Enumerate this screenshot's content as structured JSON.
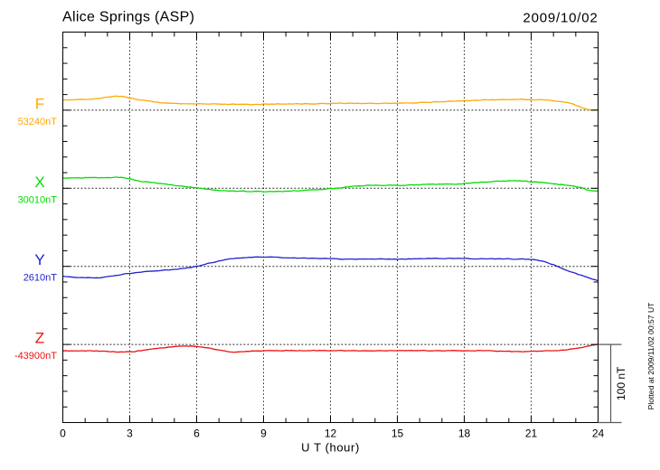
{
  "window": {
    "background": "#ffffff"
  },
  "header": {
    "title": "Alice Springs (ASP)",
    "date": "2009/10/02"
  },
  "footer_note": "Plotted at 2009/11/02 00:57 UT",
  "chart_data": {
    "type": "line",
    "title": "Alice Springs (ASP)",
    "date": "2009/10/02",
    "xlabel": "U T (hour)",
    "xlim": [
      0,
      24
    ],
    "xtick_minor_step_hours": 1,
    "xtick_major_step_hours": 3,
    "xtick_labels": [
      "0",
      "3",
      "6",
      "9",
      "12",
      "15",
      "18",
      "21",
      "24"
    ],
    "ylim_rel_nT": [
      -100,
      400
    ],
    "ytick_minor_step_nT": 20,
    "ytick_major_step_nT": 100,
    "grid": {
      "vertical_dotted_every_hours": 3,
      "dotted_baseline_per_trace": true
    },
    "legend_position": "left-of-plot",
    "x_step_hours": 0.125,
    "scale_bar": {
      "label": "100 nT",
      "nT": 100
    },
    "series": [
      {
        "name": "F",
        "baseline_label": "53240nT",
        "baseline_nT": 53240,
        "offset_rel_nT": 300,
        "color": "#ffa800",
        "delta_nT": [
          13.2,
          13.3,
          12.9,
          13.2,
          13.2,
          13.7,
          13.7,
          14.0,
          13.5,
          13.9,
          13.9,
          14.3,
          14.9,
          14.9,
          15.5,
          16.4,
          16.7,
          17.0,
          17.7,
          18.1,
          17.5,
          17.8,
          17.3,
          16.4,
          15.2,
          15.2,
          14.1,
          13.4,
          12.9,
          12.9,
          12.1,
          11.7,
          11.1,
          10.4,
          10.3,
          9.4,
          9.2,
          9.2,
          8.9,
          9.0,
          8.7,
          8.7,
          8.2,
          8.3,
          8.3,
          8.1,
          8.2,
          8.0,
          8.1,
          8.4,
          8.1,
          8.0,
          7.8,
          7.8,
          8.3,
          8.0,
          7.9,
          7.5,
          7.8,
          7.4,
          7.5,
          7.9,
          7.5,
          7.5,
          7.5,
          7.7,
          7.6,
          7.2,
          7.1,
          7.4,
          7.4,
          7.3,
          7.9,
          7.9,
          7.5,
          7.9,
          7.7,
          8.2,
          7.9,
          7.8,
          7.8,
          8.1,
          7.9,
          8.1,
          8.4,
          8.0,
          7.9,
          8.5,
          8.2,
          7.9,
          7.9,
          8.0,
          8.5,
          8.7,
          8.5,
          8.2,
          8.5,
          9.0,
          8.7,
          9.1,
          9.0,
          8.4,
          8.9,
          8.9,
          8.8,
          8.6,
          8.9,
          8.4,
          8.7,
          8.6,
          9.0,
          8.9,
          8.4,
          8.6,
          8.4,
          9.0,
          9.0,
          8.6,
          8.9,
          8.9,
          8.6,
          9.2,
          9.1,
          9.3,
          9.3,
          9.0,
          9.3,
          9.2,
          10.0,
          10.1,
          10.2,
          10.0,
          9.9,
          10.7,
          10.9,
          10.4,
          10.9,
          10.7,
          11.4,
          11.5,
          11.2,
          11.6,
          11.8,
          11.7,
          12.3,
          12.1,
          12.1,
          12.5,
          12.8,
          12.6,
          12.8,
          13.5,
          13.3,
          13.2,
          13.4,
          13.1,
          13.3,
          13.4,
          13.7,
          13.5,
          13.5,
          13.4,
          13.9,
          13.6,
          14.1,
          14.0,
          13.4,
          13.4,
          13.6,
          13.2,
          13.1,
          13.6,
          13.3,
          13.0,
          12.9,
          12.6,
          11.8,
          11.3,
          11.2,
          10.8,
          10.3,
          9.8,
          8.8,
          8.0,
          6.2,
          5.0,
          3.4,
          2.5,
          1.0,
          0.4,
          0.4,
          0.4,
          0.4
        ]
      },
      {
        "name": "X",
        "baseline_label": "30010nT",
        "baseline_nT": 30010,
        "offset_rel_nT": 200,
        "color": "#00dd00",
        "delta_nT": [
          13.1,
          13.0,
          13.0,
          13.5,
          13.2,
          13.5,
          13.3,
          12.9,
          13.7,
          13.6,
          13.7,
          13.7,
          13.7,
          13.2,
          13.6,
          13.5,
          13.7,
          13.5,
          13.8,
          14.4,
          13.8,
          14.0,
          13.4,
          12.7,
          12.1,
          11.4,
          10.2,
          9.6,
          8.6,
          8.3,
          8.5,
          7.8,
          7.4,
          7.2,
          6.2,
          6.2,
          5.7,
          5.5,
          4.5,
          4.6,
          3.5,
          3.1,
          3.1,
          2.7,
          2.0,
          1.5,
          1.7,
          0.8,
          0.7,
          0.2,
          -0.4,
          -0.8,
          -1.3,
          -1.4,
          -2.3,
          -2.3,
          -2.9,
          -3.0,
          -3.0,
          -3.4,
          -3.5,
          -3.3,
          -3.9,
          -3.7,
          -3.4,
          -3.5,
          -4.3,
          -4.3,
          -4.3,
          -3.8,
          -3.9,
          -4.0,
          -4.4,
          -4.6,
          -4.0,
          -4.1,
          -4.2,
          -3.9,
          -4.0,
          -4.3,
          -3.6,
          -3.8,
          -3.4,
          -3.0,
          -3.4,
          -3.2,
          -2.9,
          -2.4,
          -2.4,
          -2.0,
          -1.8,
          -2.1,
          -1.6,
          -1.7,
          -1.2,
          -0.5,
          -0.2,
          -0.5,
          0.1,
          0.3,
          0.4,
          1.4,
          1.8,
          2.0,
          2.7,
          2.8,
          3.0,
          2.9,
          3.1,
          3.8,
          3.9,
          3.7,
          4.0,
          3.8,
          3.5,
          3.5,
          3.7,
          4.1,
          3.9,
          3.9,
          3.9,
          3.4,
          3.6,
          3.7,
          4.3,
          4.5,
          4.2,
          4.5,
          4.2,
          5.0,
          5.0,
          5.3,
          5.2,
          5.4,
          4.8,
          5.4,
          5.1,
          5.5,
          5.4,
          5.4,
          5.3,
          5.0,
          5.6,
          5.4,
          6.3,
          6.6,
          6.4,
          7.1,
          7.2,
          7.3,
          8.0,
          7.8,
          7.8,
          8.2,
          8.4,
          9.0,
          9.3,
          8.9,
          9.3,
          9.2,
          9.8,
          9.5,
          9.9,
          9.3,
          9.8,
          9.0,
          9.4,
          8.5,
          8.1,
          8.1,
          8.1,
          7.5,
          7.5,
          7.1,
          6.6,
          6.3,
          5.6,
          5.5,
          4.6,
          4.9,
          4.1,
          3.8,
          3.4,
          2.9,
          2.1,
          1.3,
          1.1,
          -0.3,
          -2.1,
          -2.7,
          -3.2,
          -3.6,
          -3.5
        ]
      },
      {
        "name": "Y",
        "baseline_label": "2610nT",
        "baseline_nT": 2610,
        "offset_rel_nT": 100,
        "color": "#2222cc",
        "delta_nT": [
          -12.6,
          -13.1,
          -13.3,
          -13.6,
          -14.0,
          -14.3,
          -14.4,
          -14.2,
          -14.5,
          -14.3,
          -14.5,
          -14.8,
          -14.6,
          -14.8,
          -14.3,
          -13.7,
          -13.1,
          -12.6,
          -12.2,
          -11.7,
          -11.3,
          -10.6,
          -9.6,
          -9.2,
          -9.2,
          -8.8,
          -8.1,
          -7.7,
          -7.5,
          -6.8,
          -6.5,
          -6.2,
          -6.2,
          -5.9,
          -5.8,
          -5.4,
          -4.9,
          -4.4,
          -4.8,
          -4.2,
          -3.8,
          -3.8,
          -3.0,
          -2.7,
          -2.4,
          -1.6,
          -1.6,
          -0.4,
          0.2,
          0.5,
          1.7,
          2.5,
          3.9,
          4.4,
          4.9,
          5.8,
          7.0,
          7.4,
          8.4,
          9.0,
          9.8,
          9.8,
          10.4,
          10.6,
          10.7,
          11.0,
          11.2,
          11.7,
          11.6,
          12.0,
          12.1,
          11.9,
          11.8,
          11.8,
          12.0,
          12.1,
          11.8,
          11.8,
          11.3,
          10.9,
          10.9,
          10.8,
          10.8,
          10.9,
          10.5,
          10.5,
          10.8,
          10.7,
          10.2,
          10.4,
          10.4,
          10.2,
          10.0,
          10.0,
          10.3,
          10.0,
          9.9,
          10.0,
          9.8,
          9.4,
          9.0,
          9.2,
          9.3,
          9.3,
          9.3,
          9.0,
          9.4,
          9.3,
          9.5,
          9.3,
          9.3,
          9.5,
          9.2,
          9.5,
          9.7,
          9.5,
          9.2,
          9.4,
          9.1,
          9.4,
          8.9,
          9.3,
          9.5,
          9.1,
          9.7,
          9.4,
          9.8,
          9.6,
          9.9,
          9.8,
          9.9,
          10.3,
          10.0,
          10.3,
          10.4,
          10.0,
          9.9,
          9.8,
          10.2,
          10.5,
          10.0,
          10.2,
          10.3,
          10.1,
          10.2,
          10.3,
          9.7,
          9.5,
          9.5,
          9.5,
          9.9,
          9.8,
          9.5,
          9.8,
          9.9,
          9.4,
          9.7,
          9.8,
          9.3,
          9.8,
          9.9,
          9.2,
          9.1,
          9.2,
          9.4,
          9.6,
          9.1,
          9.2,
          8.6,
          8.7,
          8.2,
          7.2,
          6.8,
          5.9,
          4.5,
          2.9,
          2.3,
          0.7,
          -1.0,
          -2.5,
          -4.1,
          -5.5,
          -6.9,
          -7.7,
          -8.9,
          -10.6,
          -11.2,
          -12.7,
          -13.8,
          -15.1,
          -16.4,
          -17.2,
          -18.4
        ]
      },
      {
        "name": "Z",
        "baseline_label": "-43900nT",
        "baseline_nT": -43900,
        "offset_rel_nT": 0,
        "color": "#ee1111",
        "delta_nT": [
          -8.2,
          -7.9,
          -8.4,
          -8.1,
          -8.3,
          -8.3,
          -8.3,
          -8.0,
          -8.4,
          -8.0,
          -8.0,
          -8.6,
          -8.1,
          -8.7,
          -8.6,
          -8.6,
          -8.9,
          -9.4,
          -9.0,
          -9.7,
          -9.8,
          -9.4,
          -9.7,
          -9.2,
          -9.2,
          -9.4,
          -9.2,
          -8.0,
          -8.2,
          -7.3,
          -6.9,
          -6.2,
          -5.8,
          -5.3,
          -5.0,
          -4.4,
          -4.5,
          -4.0,
          -3.3,
          -3.3,
          -2.7,
          -2.4,
          -2.1,
          -2.2,
          -1.9,
          -2.3,
          -2.0,
          -2.4,
          -2.7,
          -3.1,
          -3.4,
          -4.0,
          -4.3,
          -4.8,
          -5.9,
          -6.6,
          -7.1,
          -7.7,
          -8.2,
          -9.1,
          -9.6,
          -9.9,
          -9.8,
          -9.5,
          -9.3,
          -9.3,
          -8.8,
          -8.9,
          -8.2,
          -8.4,
          -8.2,
          -8.5,
          -7.8,
          -8.0,
          -7.7,
          -7.9,
          -7.9,
          -7.9,
          -8.1,
          -8.2,
          -7.5,
          -7.8,
          -7.6,
          -7.9,
          -8.1,
          -7.7,
          -8.1,
          -8.1,
          -7.8,
          -8.0,
          -7.4,
          -8.1,
          -7.6,
          -7.8,
          -7.6,
          -8.1,
          -7.9,
          -8.0,
          -8.0,
          -7.7,
          -7.6,
          -8.2,
          -8.0,
          -8.0,
          -7.9,
          -7.8,
          -8.3,
          -8.3,
          -7.9,
          -8.2,
          -8.2,
          -8.2,
          -8.3,
          -7.9,
          -7.8,
          -8.1,
          -8.2,
          -7.8,
          -7.8,
          -8.0,
          -7.9,
          -7.7,
          -7.8,
          -7.9,
          -7.8,
          -7.6,
          -8.0,
          -7.9,
          -7.8,
          -7.6,
          -7.7,
          -8.3,
          -8.2,
          -8.1,
          -7.8,
          -7.9,
          -8.2,
          -8.3,
          -7.8,
          -7.8,
          -7.6,
          -7.9,
          -7.9,
          -8.2,
          -8.2,
          -8.0,
          -8.1,
          -8.1,
          -8.3,
          -7.6,
          -7.8,
          -8.0,
          -7.8,
          -7.8,
          -8.1,
          -8.5,
          -8.8,
          -8.4,
          -8.7,
          -8.7,
          -8.5,
          -9.2,
          -9.0,
          -9.0,
          -9.1,
          -9.4,
          -9.1,
          -9.0,
          -8.7,
          -8.4,
          -8.8,
          -8.4,
          -8.6,
          -8.0,
          -8.0,
          -8.1,
          -8.0,
          -8.0,
          -7.8,
          -7.1,
          -7.3,
          -6.8,
          -5.9,
          -5.6,
          -5.1,
          -4.6,
          -4.1,
          -3.3,
          -2.3,
          -1.7,
          -0.8,
          -0.5,
          0.5
        ]
      }
    ]
  }
}
